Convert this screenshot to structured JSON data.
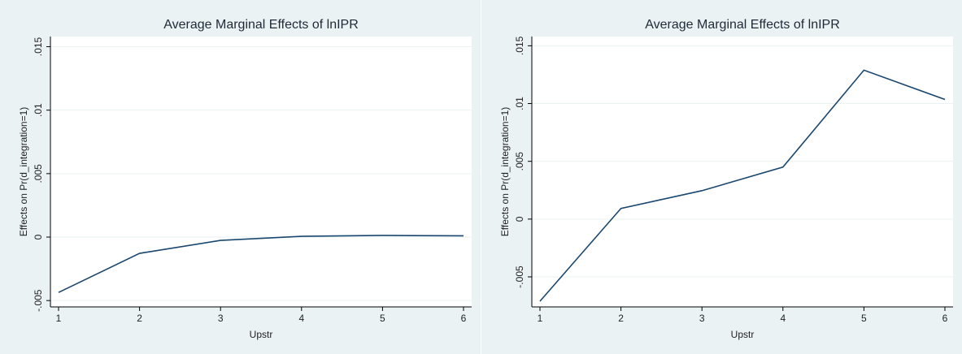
{
  "chart_data": [
    {
      "type": "line",
      "title": "Average Marginal Effects of lnIPR",
      "x_label": "Upstr",
      "y_label": "Effects on Pr(d_integration=1)",
      "x": [
        1,
        2,
        3,
        4,
        5,
        6
      ],
      "values": [
        -0.00436,
        -0.00128,
        -0.00026,
        6e-05,
        0.00013,
        0.0001
      ],
      "color": "#1a476f",
      "xlim": [
        1,
        6
      ],
      "xticks": [
        1,
        2,
        3,
        4,
        5,
        6
      ],
      "ylim": [
        -0.0055,
        0.0158
      ],
      "yticks": [
        {
          "value": -0.005,
          "label": "-.005"
        },
        0,
        {
          "value": 0.005,
          "label": ".005"
        },
        {
          "value": 0.01,
          "label": ".01"
        },
        {
          "value": 0.015,
          "label": ".015"
        }
      ],
      "grid": true
    },
    {
      "type": "line",
      "title": "Average Marginal Effects of lnIPR",
      "x_label": "Upstr",
      "y_label": "Effects on Pr(d_integration=1)",
      "x": [
        1,
        2,
        3,
        4,
        5,
        6
      ],
      "values": [
        -0.00711,
        0.00092,
        0.00246,
        0.0045,
        0.01289,
        0.01035
      ],
      "color": "#1a476f",
      "xlim": [
        1,
        6
      ],
      "xticks": [
        1,
        2,
        3,
        4,
        5,
        6
      ],
      "ylim": [
        -0.0076,
        0.0158
      ],
      "yticks": [
        {
          "value": -0.005,
          "label": "-.005"
        },
        0,
        {
          "value": 0.005,
          "label": ".005"
        },
        {
          "value": 0.01,
          "label": ".01"
        },
        {
          "value": 0.015,
          "label": ".015"
        }
      ],
      "grid": true
    }
  ]
}
